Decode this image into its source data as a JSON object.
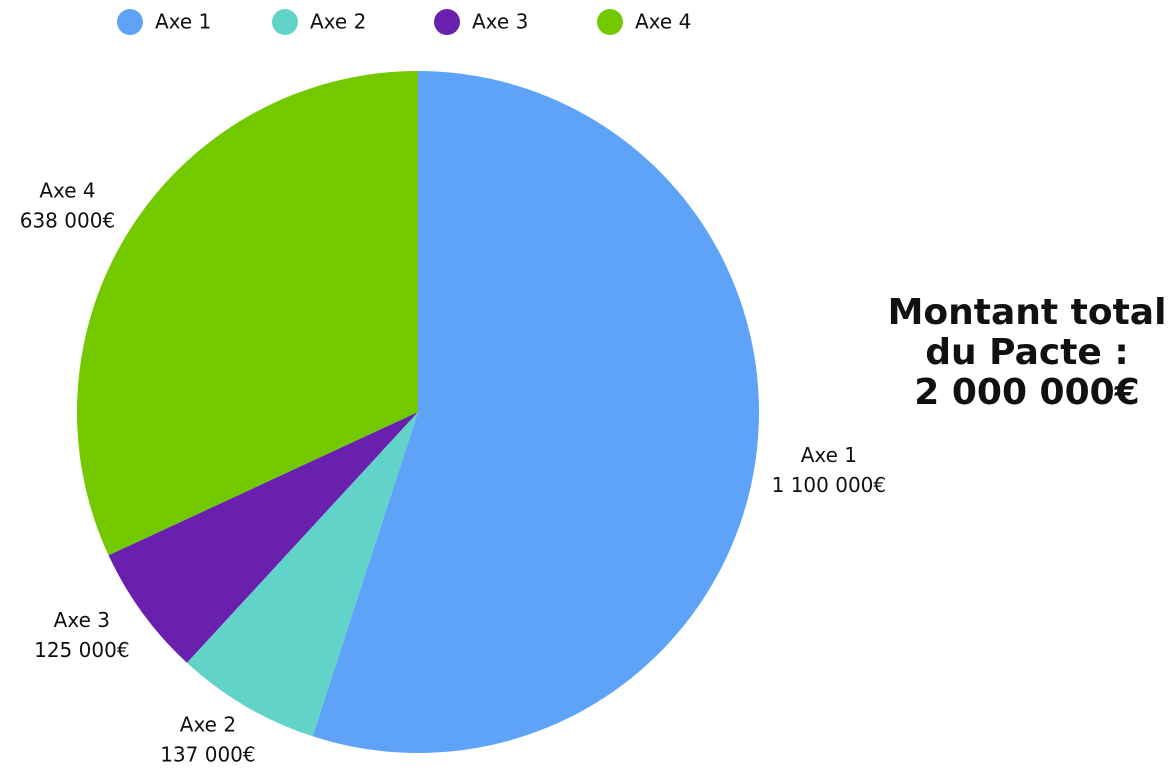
{
  "chart_data": {
    "type": "pie",
    "title": [
      "Montant total",
      "du Pacte :",
      "2 000 000€"
    ],
    "categories": [
      "Axe 1",
      "Axe 2",
      "Axe 3",
      "Axe 4"
    ],
    "values": [
      1100000,
      137000,
      125000,
      638000
    ],
    "value_labels": [
      "1 100 000€",
      "137 000€",
      "125 000€",
      "638 000€"
    ],
    "colors": [
      "#5ea3f7",
      "#62d3c9",
      "#6a20ae",
      "#72c900"
    ],
    "legend": "top"
  }
}
